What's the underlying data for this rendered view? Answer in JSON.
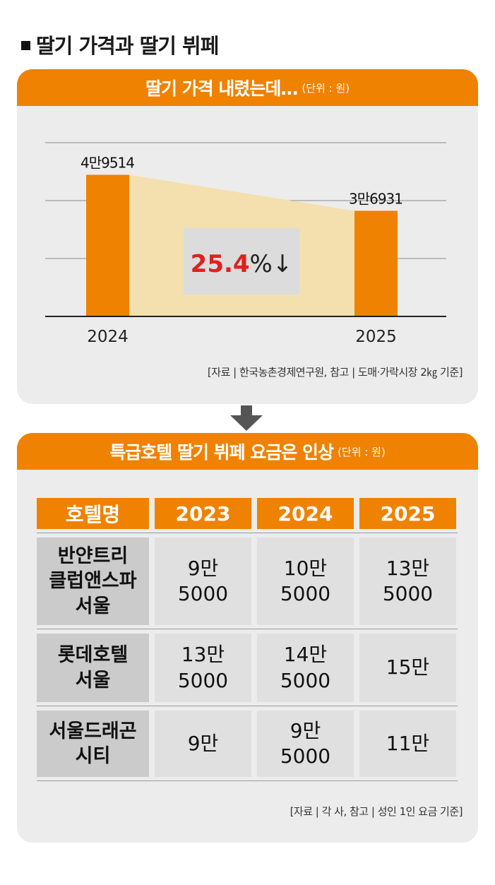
{
  "main_title": "딸기 가격과 딸기 뷔페",
  "price_section": {
    "title": "딸기 가격 내렸는데…",
    "unit": "(단위 : 원)",
    "source": "[자료 | 한국농촌경제연구원, 참고 | 도매·가락시장 2㎏ 기준]"
  },
  "chart_data": {
    "type": "bar",
    "title": "딸기 가격 내렸는데…",
    "unit": "(단위 : 원)",
    "categories": [
      "2024",
      "2025"
    ],
    "values": [
      49514,
      36931
    ],
    "value_labels": [
      "4만9514",
      "3만6931"
    ],
    "annotation": {
      "number": "25.4",
      "suffix": "%↓",
      "direction": "down"
    },
    "grid": true,
    "ylim": [
      0,
      61000
    ],
    "colors": {
      "bar": "#ef8200",
      "band": "#f4dfae",
      "annotation_number": "#e0201f"
    }
  },
  "buffet_section": {
    "title": "특급호텔 딸기 뷔페 요금은 인상",
    "unit": "(단위 : 원)",
    "source": "[자료 | 각 사, 참고 | 성인 1인 요금 기준]",
    "headers": [
      "호텔명",
      "2023",
      "2024",
      "2025"
    ],
    "rows": [
      {
        "name": [
          "반얀트리",
          "클럽앤스파",
          "서울"
        ],
        "values": [
          [
            "9만",
            "5000"
          ],
          [
            "10만",
            "5000"
          ],
          [
            "13만",
            "5000"
          ]
        ]
      },
      {
        "name": [
          "롯데호텔",
          "서울"
        ],
        "values": [
          [
            "13만",
            "5000"
          ],
          [
            "14만",
            "5000"
          ],
          [
            "15만"
          ]
        ]
      },
      {
        "name": [
          "서울드래곤",
          "시티"
        ],
        "values": [
          [
            "9만"
          ],
          [
            "9만",
            "5000"
          ],
          [
            "11만"
          ]
        ]
      }
    ]
  },
  "colors": {
    "accent": "#ef8200",
    "panel_bg": "#ececec",
    "arrow": "#555555"
  }
}
